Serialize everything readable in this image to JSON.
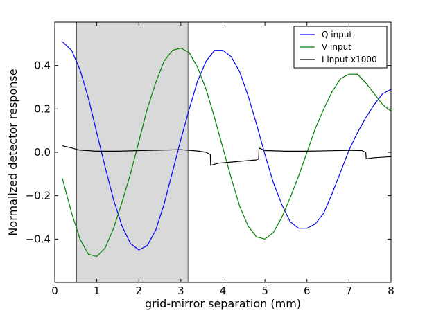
{
  "chart_data": {
    "type": "line",
    "title": "",
    "xlabel": "grid-mirror separation (mm)",
    "ylabel": "Normalized detector response",
    "xlim": [
      0,
      8
    ],
    "ylim": [
      -0.6,
      0.6
    ],
    "x_ticks": [
      0,
      1,
      2,
      3,
      4,
      5,
      6,
      7,
      8
    ],
    "y_ticks": [
      -0.4,
      -0.2,
      0.0,
      0.2,
      0.4
    ],
    "x_tick_labels": [
      "0",
      "1",
      "2",
      "3",
      "4",
      "5",
      "6",
      "7",
      "8"
    ],
    "y_tick_labels": [
      "−0.4",
      "−0.2",
      "0.0",
      "0.2",
      "0.4"
    ],
    "grid": false,
    "legend_position": "top-right",
    "shaded_region": {
      "x_start": 0.52,
      "x_end": 3.17,
      "color": "#d9d9d9"
    },
    "series": [
      {
        "name": "Q input",
        "color": "#0000ff",
        "x": [
          0.18,
          0.4,
          0.6,
          0.8,
          1.0,
          1.2,
          1.4,
          1.6,
          1.8,
          2.0,
          2.2,
          2.4,
          2.6,
          2.8,
          3.0,
          3.2,
          3.4,
          3.6,
          3.8,
          4.0,
          4.2,
          4.4,
          4.6,
          4.8,
          5.0,
          5.2,
          5.4,
          5.6,
          5.8,
          6.0,
          6.2,
          6.4,
          6.6,
          6.8,
          7.0,
          7.2,
          7.4,
          7.6,
          7.8,
          8.0
        ],
        "y": [
          0.51,
          0.47,
          0.38,
          0.25,
          0.09,
          -0.07,
          -0.22,
          -0.34,
          -0.42,
          -0.45,
          -0.43,
          -0.36,
          -0.24,
          -0.09,
          0.06,
          0.2,
          0.33,
          0.42,
          0.47,
          0.47,
          0.44,
          0.37,
          0.26,
          0.13,
          -0.01,
          -0.14,
          -0.24,
          -0.32,
          -0.35,
          -0.35,
          -0.33,
          -0.28,
          -0.19,
          -0.09,
          0.01,
          0.09,
          0.16,
          0.22,
          0.27,
          0.29
        ]
      },
      {
        "name": "V input",
        "color": "#008000",
        "x": [
          0.18,
          0.4,
          0.6,
          0.8,
          1.0,
          1.2,
          1.4,
          1.6,
          1.8,
          2.0,
          2.2,
          2.4,
          2.6,
          2.8,
          3.0,
          3.2,
          3.4,
          3.6,
          3.8,
          4.0,
          4.2,
          4.4,
          4.6,
          4.8,
          5.0,
          5.2,
          5.4,
          5.6,
          5.8,
          6.0,
          6.2,
          6.4,
          6.6,
          6.8,
          7.0,
          7.2,
          7.4,
          7.6,
          7.8,
          8.0
        ],
        "y": [
          -0.12,
          -0.28,
          -0.4,
          -0.47,
          -0.48,
          -0.44,
          -0.35,
          -0.23,
          -0.1,
          0.05,
          0.2,
          0.32,
          0.42,
          0.47,
          0.48,
          0.46,
          0.39,
          0.29,
          0.16,
          0.02,
          -0.12,
          -0.25,
          -0.34,
          -0.39,
          -0.4,
          -0.37,
          -0.3,
          -0.21,
          -0.11,
          0.0,
          0.11,
          0.2,
          0.28,
          0.34,
          0.36,
          0.36,
          0.32,
          0.27,
          0.22,
          0.19
        ]
      },
      {
        "name": "I input x1000",
        "color": "#000000",
        "x": [
          0.18,
          0.4,
          0.6,
          1.0,
          1.5,
          2.0,
          2.5,
          3.0,
          3.4,
          3.6,
          3.7,
          3.71,
          3.9,
          4.2,
          4.5,
          4.8,
          4.85,
          4.86,
          5.0,
          5.5,
          6.0,
          6.5,
          7.0,
          7.3,
          7.4,
          7.41,
          7.6,
          8.0
        ],
        "y": [
          0.03,
          0.02,
          0.01,
          0.005,
          0.005,
          0.008,
          0.01,
          0.012,
          0.006,
          0.0,
          -0.01,
          -0.06,
          -0.05,
          -0.045,
          -0.04,
          -0.035,
          -0.03,
          0.02,
          0.008,
          0.005,
          0.005,
          0.007,
          0.009,
          0.008,
          0.0,
          -0.03,
          -0.025,
          -0.02
        ]
      }
    ]
  }
}
